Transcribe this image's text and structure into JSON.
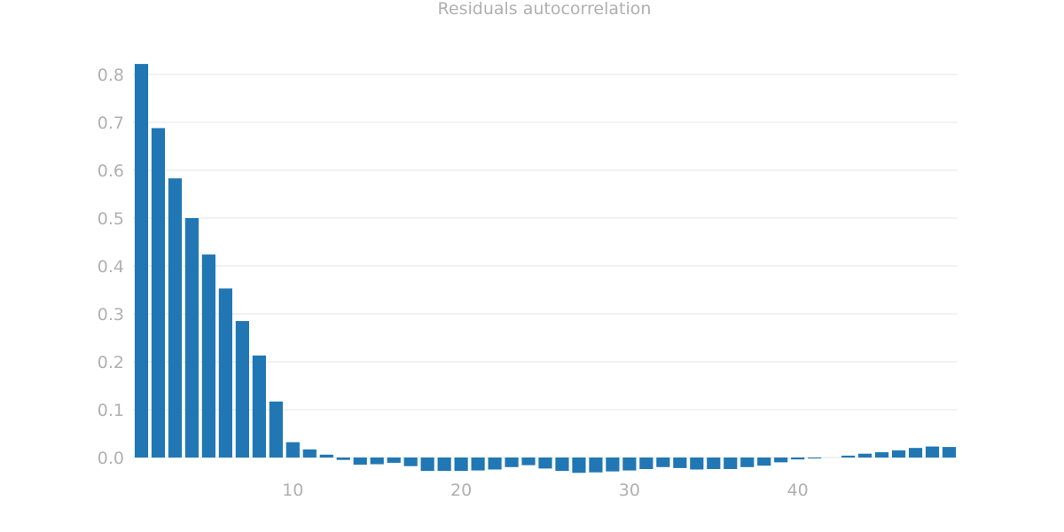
{
  "chart_data": {
    "type": "bar",
    "title": "Residuals autocorrelation",
    "xlabel": "",
    "ylabel": "",
    "x": [
      1,
      2,
      3,
      4,
      5,
      6,
      7,
      8,
      9,
      10,
      11,
      12,
      13,
      14,
      15,
      16,
      17,
      18,
      19,
      20,
      21,
      22,
      23,
      24,
      25,
      26,
      27,
      28,
      29,
      30,
      31,
      32,
      33,
      34,
      35,
      36,
      37,
      38,
      39,
      40,
      41,
      42,
      43,
      44,
      45,
      46,
      47,
      48,
      49
    ],
    "values": [
      0.822,
      0.688,
      0.583,
      0.5,
      0.424,
      0.353,
      0.285,
      0.213,
      0.117,
      0.032,
      0.017,
      0.006,
      -0.005,
      -0.015,
      -0.014,
      -0.011,
      -0.018,
      -0.028,
      -0.028,
      -0.028,
      -0.027,
      -0.025,
      -0.02,
      -0.016,
      -0.023,
      -0.028,
      -0.032,
      -0.031,
      -0.029,
      -0.027,
      -0.024,
      -0.02,
      -0.022,
      -0.025,
      -0.024,
      -0.024,
      -0.02,
      -0.017,
      -0.01,
      -0.004,
      -0.002,
      0.0,
      0.004,
      0.008,
      0.011,
      0.015,
      0.02,
      0.023,
      0.022
    ],
    "xlim": [
      0.5,
      49.5
    ],
    "ylim": [
      -0.035,
      0.84
    ],
    "x_ticks": [
      10,
      20,
      30,
      40
    ],
    "y_ticks": [
      0.0,
      0.1,
      0.2,
      0.3,
      0.4,
      0.5,
      0.6,
      0.7,
      0.8
    ],
    "x_tick_labels": [
      "10",
      "20",
      "30",
      "40"
    ],
    "y_tick_labels": [
      "0.0",
      "0.1",
      "0.2",
      "0.3",
      "0.4",
      "0.5",
      "0.6",
      "0.7",
      "0.8"
    ],
    "grid": "horizontal",
    "colors": {
      "bar": "#2077b4",
      "grid": "#e5e5e5",
      "text": "#b0b0b0"
    }
  }
}
